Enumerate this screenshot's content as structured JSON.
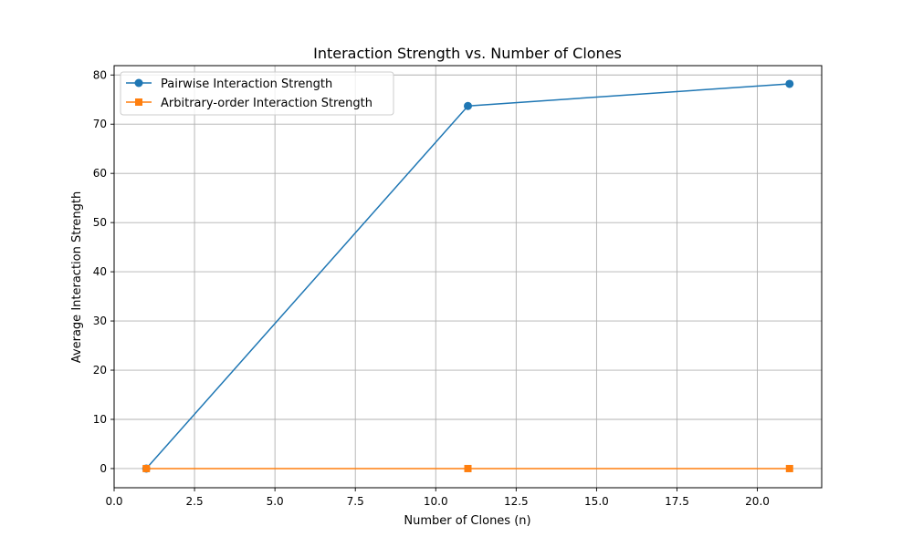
{
  "chart_data": {
    "type": "line",
    "title": "Interaction Strength vs. Number of Clones",
    "xlabel": "Number of Clones (n)",
    "ylabel": "Average Interaction Strength",
    "xlim": [
      0.0,
      22.0
    ],
    "ylim": [
      -3.9,
      81.9
    ],
    "xticks": [
      0.0,
      2.5,
      5.0,
      7.5,
      10.0,
      12.5,
      15.0,
      17.5,
      20.0
    ],
    "xtick_labels": [
      "0.0",
      "2.5",
      "5.0",
      "7.5",
      "10.0",
      "12.5",
      "15.0",
      "17.5",
      "20.0"
    ],
    "yticks": [
      0,
      10,
      20,
      30,
      40,
      50,
      60,
      70,
      80
    ],
    "ytick_labels": [
      "0",
      "10",
      "20",
      "30",
      "40",
      "50",
      "60",
      "70",
      "80"
    ],
    "grid": true,
    "legend_position": "top-left",
    "x": [
      1,
      11,
      21
    ],
    "series": [
      {
        "name": "Pairwise Interaction Strength",
        "values": [
          0.0,
          73.7,
          78.2
        ],
        "color": "#1f77b4",
        "marker": "circle"
      },
      {
        "name": "Arbitrary-order Interaction Strength",
        "values": [
          0.0,
          0.0,
          0.0
        ],
        "color": "#ff7f0e",
        "marker": "square"
      }
    ]
  }
}
